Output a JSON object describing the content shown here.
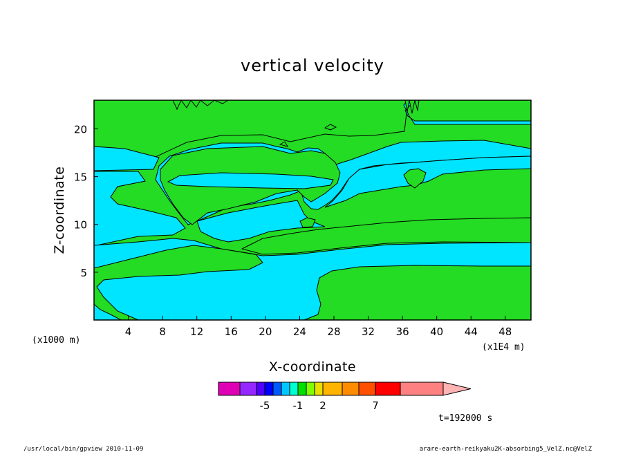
{
  "colors": {
    "positive_fill": "#23dc23",
    "negative_fill": "#00e5ff",
    "frame": "#000000"
  },
  "chart_data": {
    "type": "heatmap",
    "title": "vertical velocity",
    "xlabel": "X-coordinate",
    "ylabel": "Z-coordinate",
    "x_unit_label": "(x1000 m)",
    "x_scale_label": "(x1E4 m)",
    "xlim": [
      0,
      51
    ],
    "ylim": [
      0,
      23
    ],
    "x_ticks": [
      4,
      8,
      12,
      16,
      20,
      24,
      28,
      32,
      36,
      40,
      44,
      48
    ],
    "y_ticks": [
      5,
      10,
      15,
      20
    ],
    "time_label": "t=192000 s",
    "colorbar": {
      "levels": [
        -7,
        -6,
        -5,
        -4,
        -3,
        -2,
        -1,
        0,
        1,
        2,
        3,
        5,
        7,
        9,
        12
      ],
      "colors": [
        "#e000b4",
        "#9628ff",
        "#5000ff",
        "#0000ff",
        "#0058ff",
        "#00c8ff",
        "#00ffd0",
        "#00e000",
        "#80ff00",
        "#e8e000",
        "#ffb400",
        "#ff8c00",
        "#ff5000",
        "#ff0000",
        "#ff8080",
        "#ffb4b4"
      ],
      "labels": [
        {
          "value": -5,
          "text": "-5"
        },
        {
          "value": -1,
          "text": "-1"
        },
        {
          "value": 2,
          "text": "2"
        },
        {
          "value": 7,
          "text": "7"
        }
      ]
    }
  },
  "footer": {
    "left": "/usr/local/bin/gpview  2010-11-09",
    "right": "arare-earth-reikyaku2K-absorbing5_VelZ.nc@VelZ"
  }
}
